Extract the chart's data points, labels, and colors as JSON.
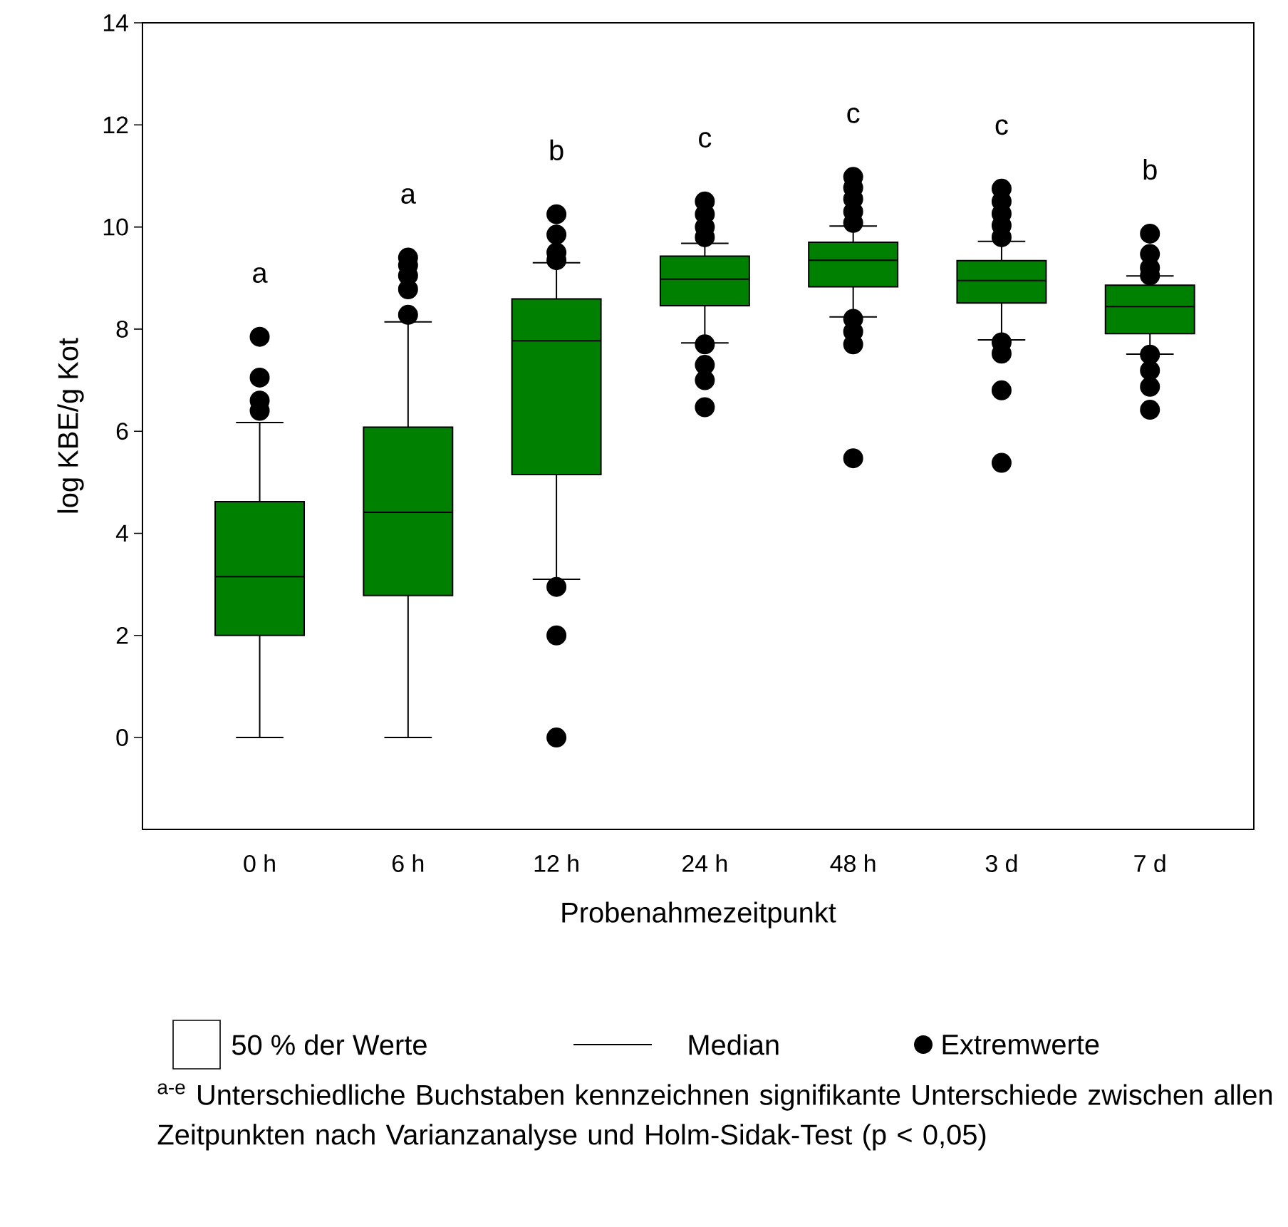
{
  "chart_data": {
    "type": "box",
    "color": "#008000",
    "marker": "circle",
    "legend": false,
    "grid": false,
    "categories": [
      "0 h",
      "6 h",
      "12 h",
      "24 h",
      "48 h",
      "3 d",
      "7 d"
    ],
    "xlabel": "Probenahmezeitpunkt",
    "ylabel": "log KBE/g Kot",
    "ylim": [
      -1.8,
      14
    ],
    "yticks": [
      0,
      2,
      4,
      6,
      8,
      10,
      12,
      14
    ],
    "boxes": [
      {
        "low": 0,
        "q1": 2.0,
        "median": 3.15,
        "q3": 4.62,
        "high": 6.17,
        "outliers": [
          6.4,
          6.6,
          7.05,
          7.85
        ]
      },
      {
        "low": 0,
        "q1": 2.78,
        "median": 4.41,
        "q3": 6.08,
        "high": 8.14,
        "outliers": [
          8.28,
          8.78,
          9.05,
          9.25,
          9.4
        ]
      },
      {
        "low": 3.1,
        "q1": 5.15,
        "median": 7.77,
        "q3": 8.59,
        "high": 9.3,
        "outliers": [
          0,
          2.0,
          2.95,
          9.35,
          9.5,
          9.85,
          10.25
        ]
      },
      {
        "low": 7.73,
        "q1": 8.46,
        "median": 8.98,
        "q3": 9.43,
        "high": 9.68,
        "outliers": [
          6.47,
          7.0,
          7.3,
          7.7,
          9.8,
          10.0,
          10.25,
          10.5
        ]
      },
      {
        "low": 8.24,
        "q1": 8.83,
        "median": 9.35,
        "q3": 9.7,
        "high": 10.02,
        "outliers": [
          5.47,
          7.7,
          7.95,
          8.2,
          10.08,
          10.3,
          10.55,
          10.77,
          10.98
        ]
      },
      {
        "low": 7.79,
        "q1": 8.51,
        "median": 8.95,
        "q3": 9.34,
        "high": 9.72,
        "outliers": [
          5.38,
          6.8,
          7.52,
          7.74,
          9.8,
          10.03,
          10.26,
          10.5,
          10.75
        ]
      },
      {
        "low": 7.51,
        "q1": 7.91,
        "median": 8.44,
        "q3": 8.86,
        "high": 9.04,
        "outliers": [
          6.42,
          6.87,
          7.19,
          7.5,
          9.05,
          9.2,
          9.47,
          9.87
        ]
      }
    ],
    "annotations": [
      "50 % der Werte",
      "Median",
      "Extremwerte",
      "a",
      "a",
      "b",
      "c",
      "c",
      "c",
      "b",
      "$^{a-e}$ Unterschiedliche Buchstaben kennzeichnen signifikante Unterschiede zwischen allen Zeitpunkten nach Varianzanalyse und Holm-Sidak-Test (p < 0,05)"
    ]
  }
}
